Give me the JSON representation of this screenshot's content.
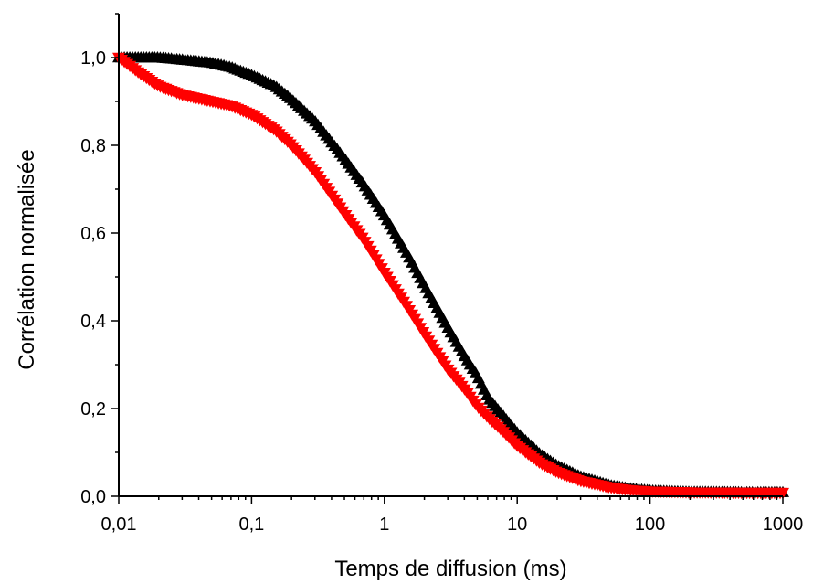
{
  "chart_data": {
    "type": "scatter",
    "xlabel": "Temps de diffusion (ms)",
    "ylabel": "Corrélation normalisée",
    "x_scale": "log",
    "xlim": [
      0.01,
      1000
    ],
    "ylim": [
      0.0,
      1.1
    ],
    "x_ticks": [
      0.01,
      0.1,
      1,
      10,
      100,
      1000
    ],
    "x_tick_labels": [
      "0,01",
      "0,1",
      "1",
      "10",
      "100",
      "1000"
    ],
    "y_ticks": [
      0.0,
      0.2,
      0.4,
      0.6,
      0.8,
      1.0
    ],
    "y_tick_labels": [
      "0,0",
      "0,2",
      "0,4",
      "0,6",
      "0,8",
      "1,0"
    ],
    "grid": false,
    "series": [
      {
        "marker": "triangle-up",
        "color": "#000000",
        "x": [
          0.01,
          0.02,
          0.03,
          0.05,
          0.07,
          0.1,
          0.15,
          0.2,
          0.3,
          0.5,
          0.7,
          1,
          1.5,
          2,
          3,
          4,
          5,
          6,
          8,
          10,
          15,
          20,
          30,
          50,
          70,
          100,
          200,
          500,
          1000
        ],
        "y": [
          1.0,
          1.0,
          0.995,
          0.988,
          0.978,
          0.96,
          0.935,
          0.905,
          0.855,
          0.77,
          0.71,
          0.64,
          0.55,
          0.48,
          0.385,
          0.32,
          0.275,
          0.225,
          0.18,
          0.145,
          0.095,
          0.07,
          0.045,
          0.025,
          0.018,
          0.013,
          0.01,
          0.009,
          0.009
        ]
      },
      {
        "marker": "triangle-down",
        "color": "#ff0000",
        "x": [
          0.01,
          0.015,
          0.02,
          0.03,
          0.05,
          0.07,
          0.1,
          0.15,
          0.2,
          0.3,
          0.5,
          0.7,
          1,
          1.5,
          2,
          3,
          4,
          5,
          6,
          8,
          10,
          15,
          20,
          30,
          50,
          70,
          100,
          200,
          500,
          1000
        ],
        "y": [
          1.0,
          0.96,
          0.935,
          0.915,
          0.9,
          0.89,
          0.87,
          0.835,
          0.8,
          0.74,
          0.645,
          0.585,
          0.51,
          0.43,
          0.37,
          0.29,
          0.245,
          0.205,
          0.18,
          0.145,
          0.115,
          0.075,
          0.055,
          0.035,
          0.02,
          0.014,
          0.011,
          0.009,
          0.008,
          0.008
        ]
      }
    ]
  }
}
